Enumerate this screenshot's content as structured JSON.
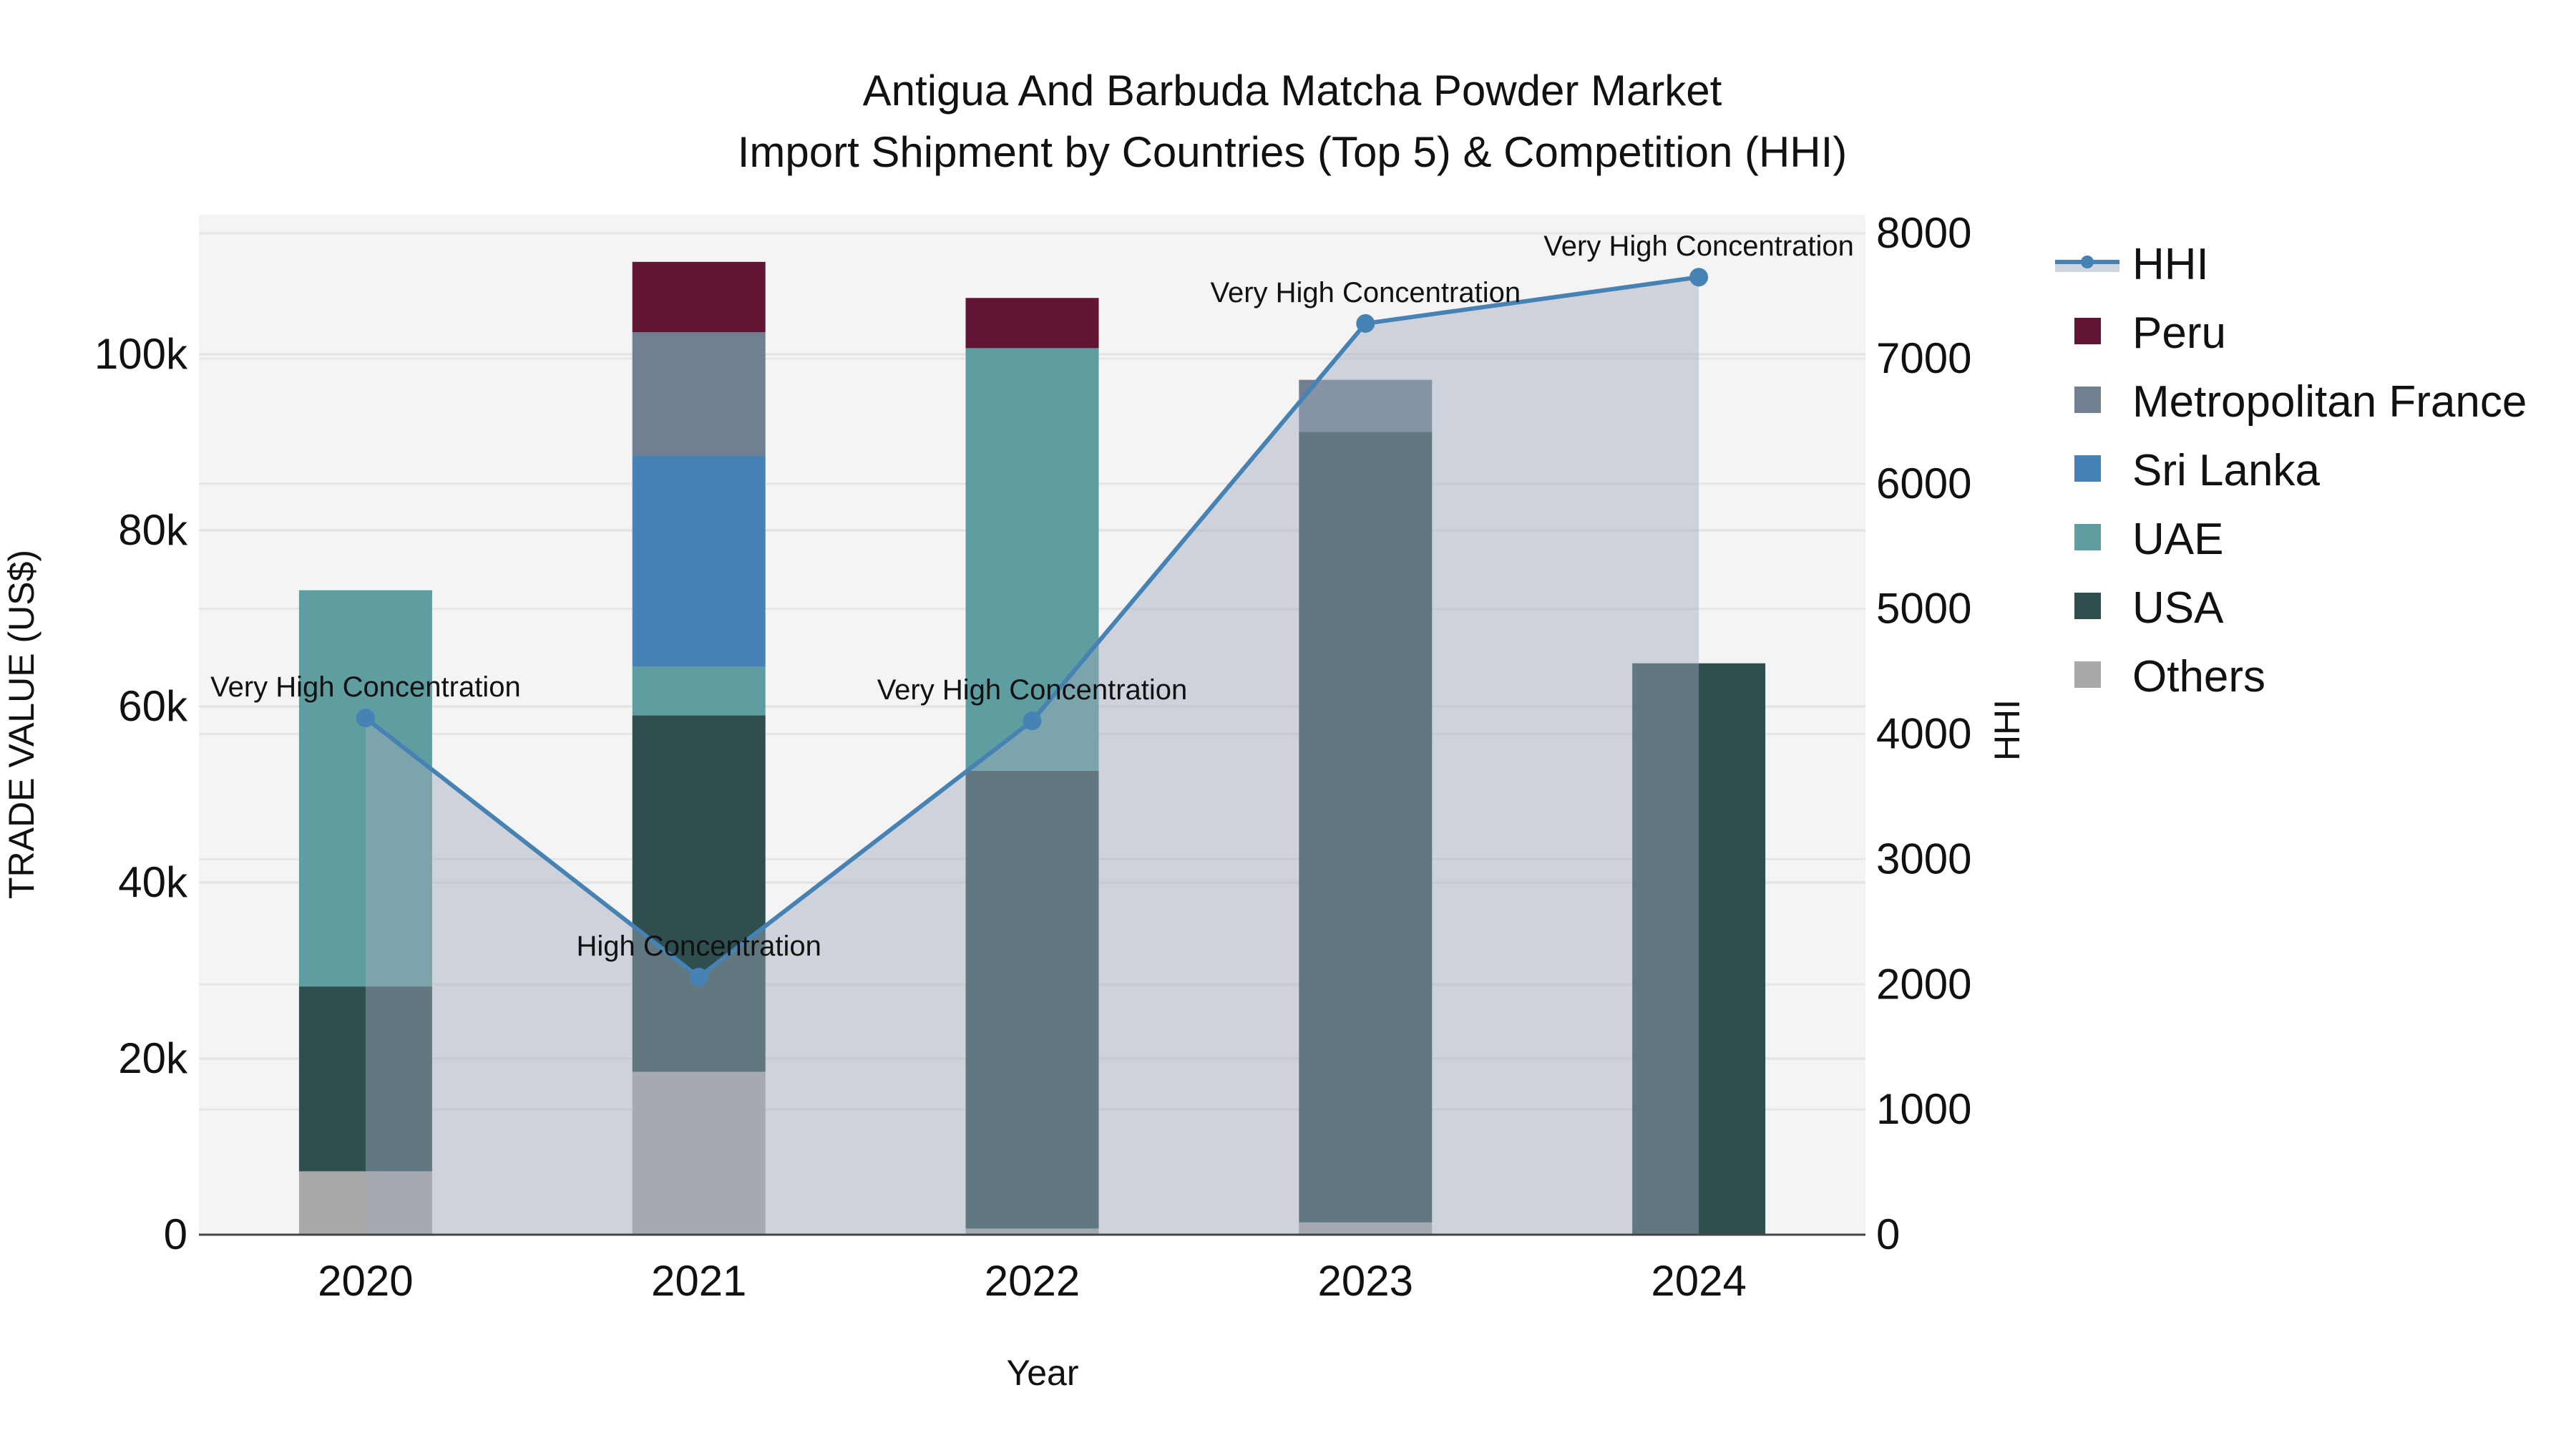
{
  "title": {
    "line1": "Antigua And Barbuda Matcha Powder Market",
    "line2": "Import Shipment by Countries (Top 5) & Competition (HHI)"
  },
  "axes": {
    "x_title": "Year",
    "y_left_title": "TRADE VALUE (US$)",
    "y_right_title": "HHI",
    "y_left_ticks": [
      "0",
      "20k",
      "40k",
      "60k",
      "80k",
      "100k"
    ],
    "y_right_ticks": [
      "0",
      "1000",
      "2000",
      "3000",
      "4000",
      "5000",
      "6000",
      "7000",
      "8000"
    ]
  },
  "legend": [
    {
      "name": "HHI",
      "type": "line",
      "color": "#4682b4"
    },
    {
      "name": "Peru",
      "type": "bar",
      "color": "#611434"
    },
    {
      "name": "Metropolitan France",
      "type": "bar",
      "color": "#708090"
    },
    {
      "name": "Sri Lanka",
      "type": "bar",
      "color": "#4682b4"
    },
    {
      "name": "UAE",
      "type": "bar",
      "color": "#5f9ea0"
    },
    {
      "name": "USA",
      "type": "bar",
      "color": "#2f4f4f"
    },
    {
      "name": "Others",
      "type": "bar",
      "color": "#a9a9a9"
    }
  ],
  "chart_data": {
    "type": "bar",
    "stacked": true,
    "title": "Antigua And Barbuda Matcha Powder Market — Import Shipment by Countries (Top 5) & Competition (HHI)",
    "xlabel": "Year",
    "ylabel": "TRADE VALUE (US$)",
    "y2label": "HHI",
    "categories": [
      "2020",
      "2021",
      "2022",
      "2023",
      "2024"
    ],
    "ylim": [
      0,
      115000
    ],
    "y2lim": [
      0,
      8300
    ],
    "grid": true,
    "legend_position": "right",
    "series": [
      {
        "name": "Others",
        "color": "#a9a9a9",
        "values": [
          7200,
          18500,
          700,
          1400,
          0
        ]
      },
      {
        "name": "USA",
        "color": "#2f4f4f",
        "values": [
          21000,
          40500,
          52000,
          89800,
          64900
        ]
      },
      {
        "name": "UAE",
        "color": "#5f9ea0",
        "values": [
          45000,
          5500,
          48000,
          0,
          0
        ]
      },
      {
        "name": "Sri Lanka",
        "color": "#4682b4",
        "values": [
          0,
          24000,
          0,
          0,
          0
        ]
      },
      {
        "name": "Metropolitan France",
        "color": "#708090",
        "values": [
          0,
          14000,
          0,
          5900,
          0
        ]
      },
      {
        "name": "Peru",
        "color": "#611434",
        "values": [
          0,
          8000,
          5700,
          0,
          0
        ]
      }
    ],
    "line_series": {
      "name": "HHI",
      "axis": "right",
      "color": "#4682b4",
      "fill": "tozeroy",
      "values": [
        4128,
        2058,
        4105,
        7280,
        7650
      ],
      "annotations": [
        "Very High Concentration",
        "High Concentration",
        "Very High Concentration",
        "Very High Concentration",
        "Very High Concentration"
      ]
    }
  }
}
